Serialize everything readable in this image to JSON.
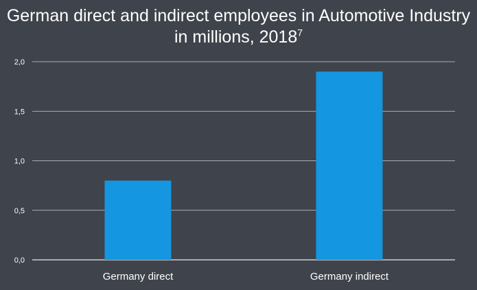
{
  "chart_data": {
    "type": "bar",
    "title": "German direct and indirect employees in Automotive Industry in millions, 2018",
    "title_footnote": "7",
    "categories": [
      "Germany direct",
      "Germany indirect"
    ],
    "values": [
      0.8,
      1.9
    ],
    "ylim": [
      0,
      2.0
    ],
    "yticks": [
      "0,0",
      "0,5",
      "1,0",
      "1,5",
      "2,0"
    ],
    "xlabel": "",
    "ylabel": "",
    "grid": true,
    "legend": "none",
    "colors": {
      "background": "#3f434b",
      "bar": "#1596e0",
      "grid": "#ffffff",
      "text": "#ffffff"
    }
  }
}
